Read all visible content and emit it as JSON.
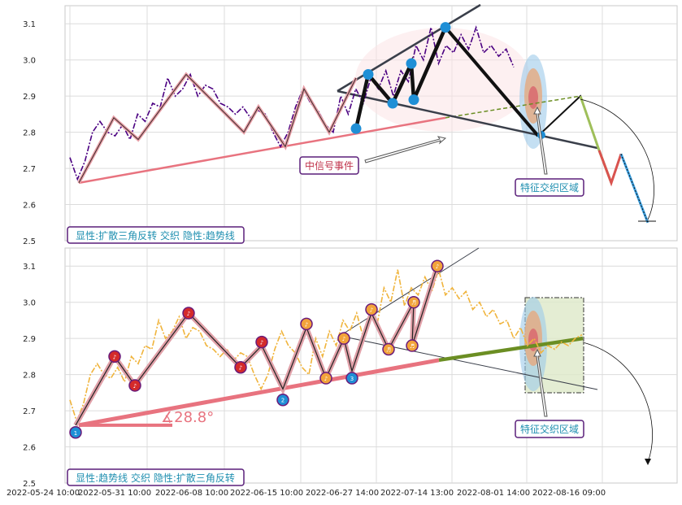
{
  "chart_data": [
    {
      "type": "line",
      "panel": "top",
      "ylim": [
        2.5,
        3.15
      ],
      "y_ticks": [
        "2.5",
        "2.6",
        "2.7",
        "2.8",
        "2.9",
        "3.0",
        "3.1"
      ],
      "x_tick_labels": [
        "2022-05-24 10:00",
        "2022-05-31 10:00",
        "2022-06-08 10:00",
        "2022-06-15 10:00",
        "2022-06-27 14:00",
        "2022-07-14 13:00",
        "2022-08-01 14:00",
        "2022-08-16 09:00"
      ],
      "price_series": [
        2.73,
        2.67,
        2.72,
        2.8,
        2.83,
        2.8,
        2.79,
        2.82,
        2.78,
        2.85,
        2.83,
        2.88,
        2.87,
        2.95,
        2.9,
        2.92,
        2.96,
        2.9,
        2.93,
        2.92,
        2.88,
        2.87,
        2.85,
        2.87,
        2.84,
        2.86,
        2.85,
        2.8,
        2.76,
        2.8,
        2.87,
        2.92,
        2.88,
        2.86,
        2.82,
        2.8,
        2.9,
        2.85,
        2.92,
        2.88,
        2.95,
        2.92,
        2.97,
        2.9,
        2.97,
        2.94,
        3.04,
        3.0,
        3.09,
        2.99,
        3.04,
        3.02,
        3.07,
        3.03,
        3.09,
        3.02,
        3.04,
        3.01,
        3.03,
        2.98
      ],
      "zigzag": [
        2.66,
        2.84,
        2.78,
        2.96,
        2.8,
        2.87,
        2.76,
        2.92,
        2.8,
        2.95,
        2.87,
        2.99,
        2.88,
        3.09
      ],
      "pattern_points": [
        2.81,
        2.96,
        2.88,
        2.99,
        2.89,
        3.09
      ],
      "projection": [
        2.79,
        2.9,
        2.75,
        2.66,
        2.74,
        2.55
      ],
      "annotation_label": "中信号事件",
      "zone_label": "特征交织区域",
      "legend_label": "显性:扩散三角反转 交织 隐性:趋势线"
    },
    {
      "type": "line",
      "panel": "bottom",
      "ylim": [
        2.5,
        3.15
      ],
      "y_ticks": [
        "2.5",
        "2.6",
        "2.7",
        "2.8",
        "2.9",
        "3.0",
        "3.1"
      ],
      "price_series": [
        2.73,
        2.67,
        2.72,
        2.8,
        2.83,
        2.8,
        2.79,
        2.82,
        2.78,
        2.85,
        2.83,
        2.88,
        2.87,
        2.95,
        2.9,
        2.92,
        2.96,
        2.9,
        2.93,
        2.92,
        2.88,
        2.87,
        2.85,
        2.87,
        2.84,
        2.86,
        2.85,
        2.8,
        2.76,
        2.8,
        2.87,
        2.92,
        2.88,
        2.86,
        2.82,
        2.8,
        2.9,
        2.85,
        2.92,
        2.88,
        2.95,
        2.92,
        2.97,
        2.9,
        2.97,
        2.94,
        3.04,
        3.0,
        3.09,
        2.99,
        3.04,
        3.02,
        3.07,
        3.03,
        3.09,
        3.02,
        3.04,
        3.01,
        3.03,
        2.98,
        3.0,
        2.96,
        2.98,
        2.94,
        2.95,
        2.9,
        2.93,
        2.88,
        2.9,
        2.86,
        2.88,
        2.87,
        2.89,
        2.88,
        2.9,
        2.91
      ],
      "zigzag": [
        2.66,
        2.85,
        2.77,
        2.97,
        2.82,
        2.88,
        2.76,
        2.93,
        2.79,
        2.9,
        2.81,
        2.97,
        2.87,
        3.0,
        2.88,
        3.1
      ],
      "markers": [
        {
          "label": "1",
          "y": 2.64,
          "color": "blue"
        },
        {
          "label": "♪",
          "y": 2.85,
          "color": "red"
        },
        {
          "label": "♪",
          "y": 2.77,
          "color": "red"
        },
        {
          "label": "♪",
          "y": 2.97,
          "color": "red"
        },
        {
          "label": "♪",
          "y": 2.82,
          "color": "red"
        },
        {
          "label": "♪",
          "y": 2.89,
          "color": "red"
        },
        {
          "label": "2",
          "y": 2.73,
          "color": "blue"
        },
        {
          "label": "♪",
          "y": 2.94,
          "color": "orange"
        },
        {
          "label": "♪",
          "y": 2.79,
          "color": "orange"
        },
        {
          "label": "♪",
          "y": 2.9,
          "color": "orange"
        },
        {
          "label": "3",
          "y": 2.79,
          "color": "blue"
        },
        {
          "label": "♪",
          "y": 2.98,
          "color": "orange"
        },
        {
          "label": "♬",
          "y": 2.87,
          "color": "orange"
        },
        {
          "label": "♬",
          "y": 3.0,
          "color": "orange"
        },
        {
          "label": "♬",
          "y": 2.88,
          "color": "orange"
        },
        {
          "label": "♪",
          "y": 3.1,
          "color": "orange"
        }
      ],
      "angle_label": "∡28.8°",
      "zone_label": "特征交织区域",
      "legend_label": "显性:趋势线 交织 隐性:扩散三角反转"
    }
  ],
  "colors": {
    "price_top": "#4b0082",
    "price_bottom": "#f0b43c",
    "trendline": "#e8737f",
    "zone_green": "#6b8e23",
    "marker_blue": "#1f8fd6",
    "label_border": "#5a1f7a",
    "label_text": "#1f8fb0",
    "annotation_text": "#c0344c"
  }
}
